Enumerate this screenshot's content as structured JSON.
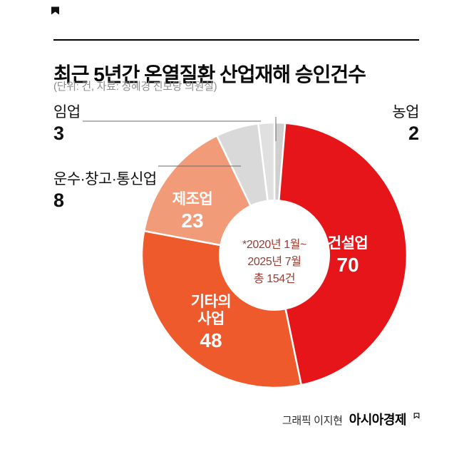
{
  "header": {
    "title": "최근 5년간 온열질환 산업재해 승인건수",
    "subtitle": "(단위: 건, 자료: 정혜경 진보당 의원실)"
  },
  "chart_data": {
    "type": "pie",
    "title": "최근 5년간 온열질환 산업재해 승인건수",
    "unit": "건",
    "total": 154,
    "period": "2020년 1월~2025년 7월",
    "legend_position": "labels-on-chart",
    "segments": [
      {
        "key": "agriculture",
        "label": "농업",
        "value": 2,
        "color": "#cfcfcf"
      },
      {
        "key": "construction",
        "label": "건설업",
        "value": 70,
        "color": "#e5151a"
      },
      {
        "key": "other-business",
        "label": "기타의 사업",
        "label_lines": [
          "기타의",
          "사업"
        ],
        "value": 48,
        "color": "#ee5a2b"
      },
      {
        "key": "manufacturing",
        "label": "제조업",
        "value": 23,
        "color": "#f29b78"
      },
      {
        "key": "transport",
        "label": "운수·창고·통신업",
        "value": 8,
        "color": "#d9d9d9"
      },
      {
        "key": "forestry",
        "label": "임업",
        "value": 3,
        "color": "#e0e0e0"
      }
    ],
    "center_note": [
      "*2020년 1월~",
      "2025년 7월",
      "총 154건"
    ]
  },
  "footer": {
    "credit": "그래픽 이지현",
    "brand": "아시아경제"
  }
}
